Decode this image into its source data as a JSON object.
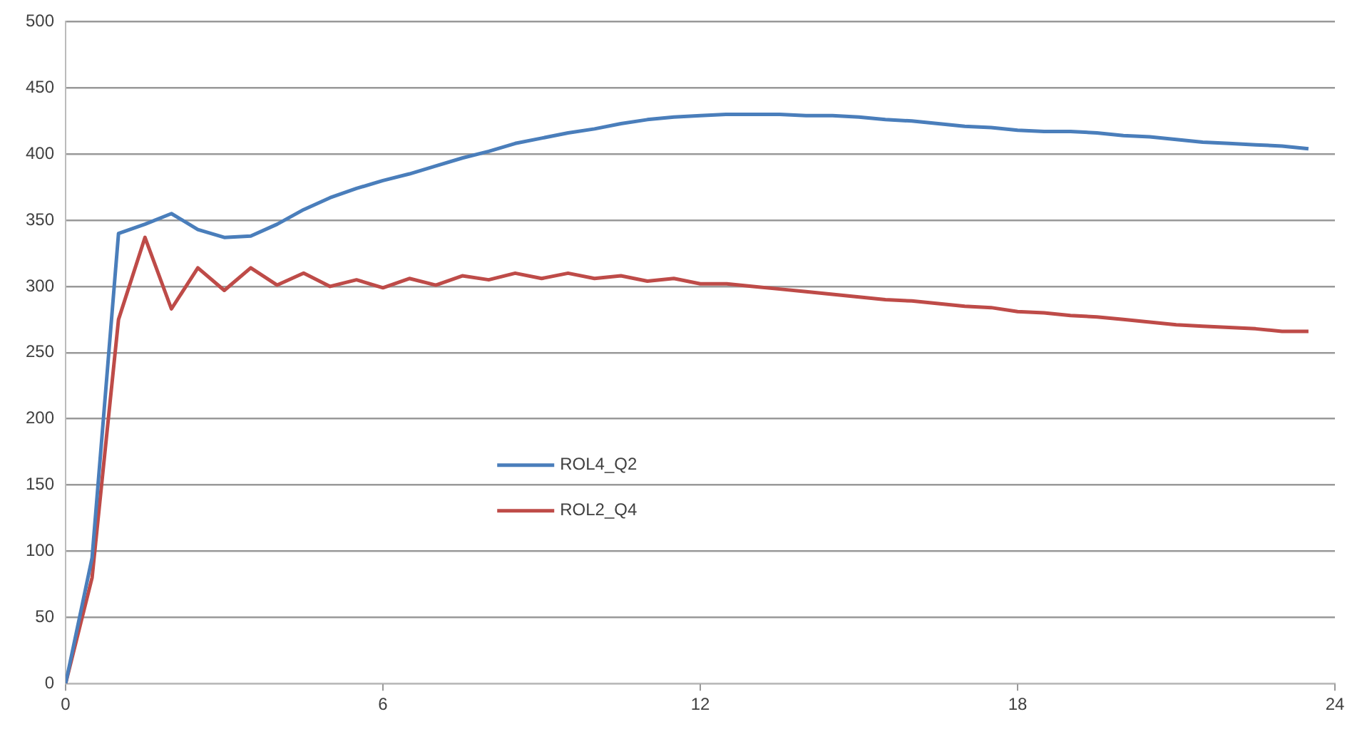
{
  "chart_data": {
    "type": "line",
    "x": [
      0,
      0.5,
      1,
      1.5,
      2,
      2.5,
      3,
      3.5,
      4,
      4.5,
      5,
      5.5,
      6,
      6.5,
      7,
      7.5,
      8,
      8.5,
      9,
      9.5,
      10,
      10.5,
      11,
      11.5,
      12,
      12.5,
      13,
      13.5,
      14,
      14.5,
      15,
      15.5,
      16,
      16.5,
      17,
      17.5,
      18,
      18.5,
      19,
      19.5,
      20,
      20.5,
      21,
      21.5,
      22,
      22.5,
      23,
      23.5
    ],
    "series": [
      {
        "name": "ROL4_Q2",
        "color": "#4a7ebb",
        "values": [
          0,
          95,
          340,
          347,
          355,
          343,
          337,
          338,
          347,
          358,
          367,
          374,
          380,
          385,
          391,
          397,
          402,
          408,
          412,
          416,
          419,
          423,
          426,
          428,
          429,
          430,
          430,
          430,
          429,
          429,
          428,
          426,
          425,
          423,
          421,
          420,
          418,
          417,
          417,
          416,
          414,
          413,
          411,
          409,
          408,
          407,
          406,
          404
        ]
      },
      {
        "name": "ROL2_Q4",
        "color": "#be4b48",
        "values": [
          0,
          80,
          275,
          337,
          283,
          314,
          297,
          314,
          301,
          310,
          300,
          305,
          299,
          306,
          301,
          308,
          305,
          310,
          306,
          310,
          306,
          308,
          304,
          306,
          302,
          302,
          300,
          298,
          296,
          294,
          292,
          290,
          289,
          287,
          285,
          284,
          281,
          280,
          278,
          277,
          275,
          273,
          271,
          270,
          269,
          268,
          266,
          266
        ]
      }
    ],
    "xlim": [
      0,
      24
    ],
    "xticks": [
      0,
      6,
      12,
      18,
      24
    ],
    "ylim": [
      0,
      500
    ],
    "yticks": [
      0,
      50,
      100,
      150,
      200,
      250,
      300,
      350,
      400,
      450,
      500
    ],
    "grid": "y",
    "legend": "center",
    "marker": "none",
    "line_style": "solid"
  }
}
